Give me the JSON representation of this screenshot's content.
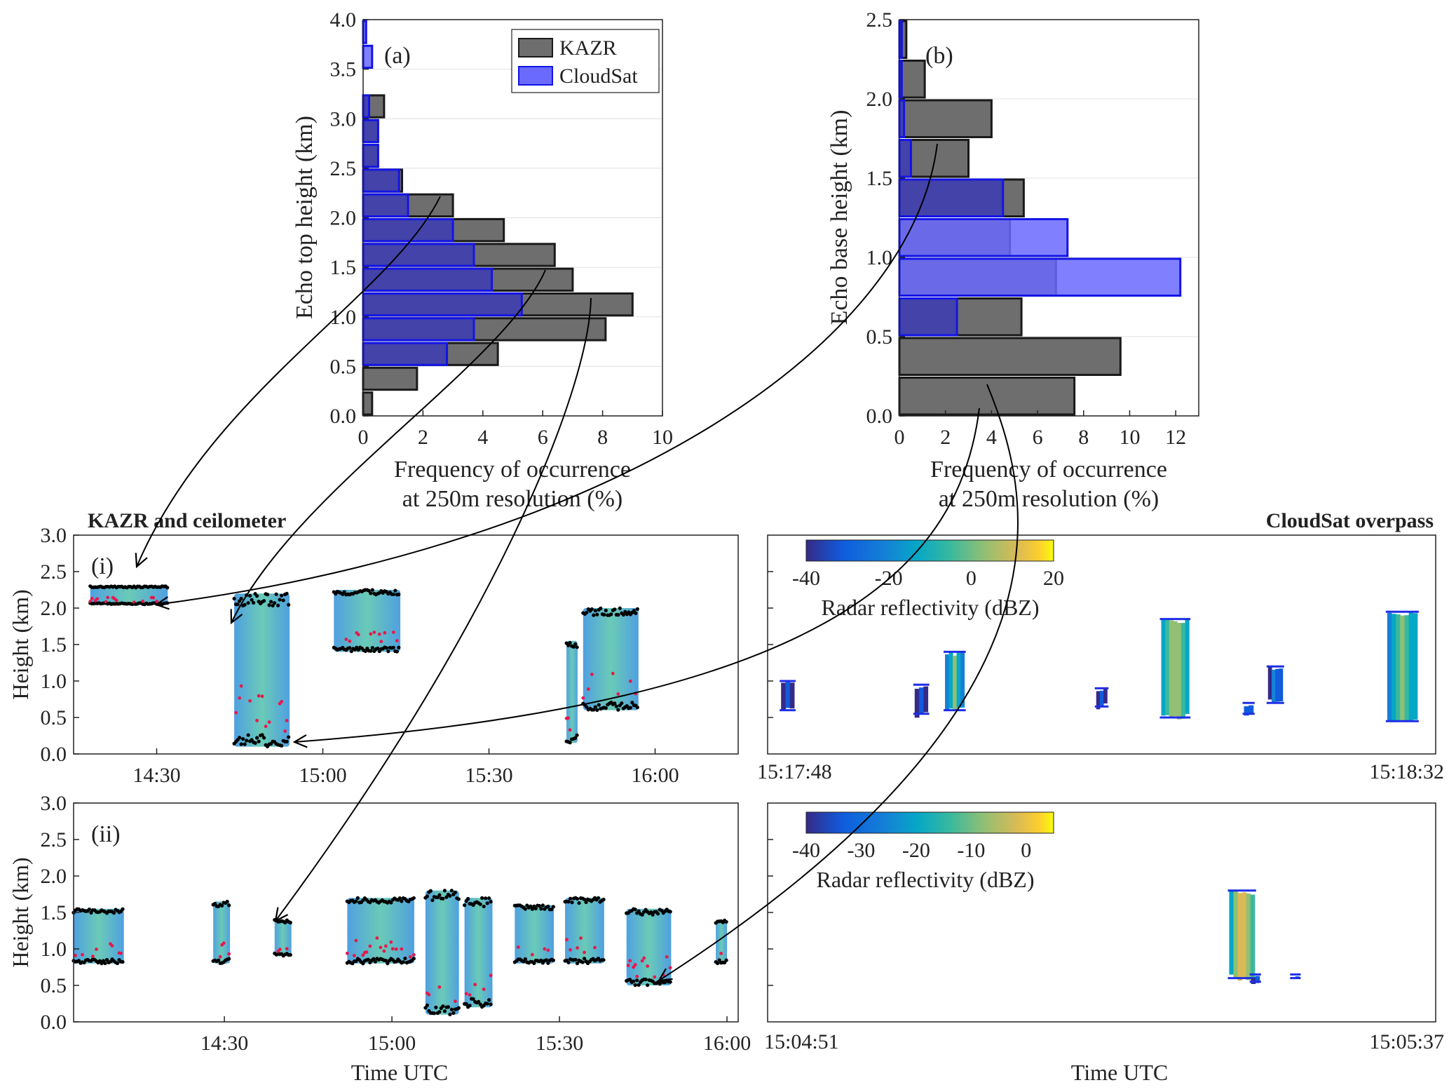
{
  "colors": {
    "kazr": "#6e6e6e",
    "cloudsat": "#6a6aff",
    "cloudsat_dark": "#3c3cb4",
    "edge_kazr": "#1a1a1a",
    "edge_cloudsat": "#1414e6",
    "ceilometer": "#e6194b",
    "echo_top": "#000000",
    "cloudsat_dot": "#1e2ee6"
  },
  "headings": {
    "kazr": "KAZR and ceilometer",
    "cloudsat": "CloudSat overpass"
  },
  "chart_data": [
    {
      "id": "a",
      "type": "bar",
      "orientation": "horizontal",
      "panel_label": "(a)",
      "ylabel": "Echo top height (km)",
      "xlabel_line1": "Frequency of occurrence",
      "xlabel_line2": "at 250m resolution (%)",
      "xlim": [
        0,
        10
      ],
      "ylim": [
        0,
        4
      ],
      "xticks": [
        "0",
        "2",
        "4",
        "6",
        "8",
        "10"
      ],
      "yticks": [
        "0.0",
        "0.5",
        "1.0",
        "1.5",
        "2.0",
        "2.5",
        "3.0",
        "3.5",
        "4.0"
      ],
      "bin_width_km": 0.25,
      "bin_bottoms_km": [
        0,
        0.25,
        0.5,
        0.75,
        1.0,
        1.25,
        1.5,
        1.75,
        2.0,
        2.25,
        2.5,
        2.75,
        3.0,
        3.25,
        3.5,
        3.75
      ],
      "legend_position": "top-right",
      "series": [
        {
          "name": "KAZR",
          "values": [
            0.3,
            1.8,
            4.5,
            8.1,
            9.0,
            7.0,
            6.4,
            4.7,
            3.0,
            1.3,
            0.5,
            0.5,
            0.7,
            0.0,
            0.0,
            0.0
          ]
        },
        {
          "name": "CloudSat",
          "values": [
            0.0,
            0.0,
            2.8,
            3.7,
            5.3,
            4.3,
            3.7,
            3.0,
            1.5,
            1.2,
            0.5,
            0.5,
            0.2,
            0.0,
            0.3,
            0.1
          ]
        }
      ]
    },
    {
      "id": "b",
      "type": "bar",
      "orientation": "horizontal",
      "panel_label": "(b)",
      "ylabel": "Echo base height (km)",
      "xlabel_line1": "Frequency of occurrence",
      "xlabel_line2": "at 250m resolution (%)",
      "xlim": [
        0,
        13
      ],
      "ylim": [
        0,
        2.5
      ],
      "xticks": [
        "0",
        "2",
        "4",
        "6",
        "8",
        "10",
        "12"
      ],
      "yticks": [
        "0.0",
        "0.5",
        "1.0",
        "1.5",
        "2.0",
        "2.5"
      ],
      "bin_width_km": 0.25,
      "bin_bottoms_km": [
        0,
        0.25,
        0.5,
        0.75,
        1.0,
        1.25,
        1.5,
        1.75,
        2.0,
        2.25
      ],
      "series": [
        {
          "name": "KAZR",
          "values": [
            7.6,
            9.6,
            5.3,
            6.8,
            4.8,
            5.4,
            3.0,
            4.0,
            1.1,
            0.3
          ]
        },
        {
          "name": "CloudSat",
          "values": [
            0.0,
            0.0,
            2.5,
            12.2,
            7.3,
            4.5,
            0.5,
            0.2,
            0.1,
            0.1
          ]
        }
      ]
    },
    {
      "id": "i-kazr",
      "type": "scatter",
      "panel_label": "(i)",
      "ylabel": "Height (km)",
      "xlabel": "",
      "ylim": [
        0,
        3
      ],
      "yticks": [
        "0.0",
        "0.5",
        "1.0",
        "1.5",
        "2.0",
        "2.5",
        "3.0"
      ],
      "xlim_min": [
        855,
        975
      ],
      "xticks": [
        {
          "label": "14:30",
          "min": 870
        },
        {
          "label": "15:00",
          "min": 900
        },
        {
          "label": "15:30",
          "min": 930
        },
        {
          "label": "16:00",
          "min": 960
        }
      ],
      "clouds": [
        {
          "start": 858,
          "end": 872,
          "base": 2.05,
          "top": 2.3
        },
        {
          "start": 884,
          "end": 894,
          "base": 0.1,
          "top": 2.2
        },
        {
          "start": 902,
          "end": 914,
          "base": 1.4,
          "top": 2.25
        },
        {
          "start": 944,
          "end": 946,
          "base": 0.15,
          "top": 1.55
        },
        {
          "start": 947,
          "end": 957,
          "base": 0.6,
          "top": 2.0
        }
      ]
    },
    {
      "id": "i-cloudsat",
      "type": "heatmap",
      "colorbar_label": "Radar reflectivity (dBZ)",
      "colorbar_ticks": [
        "-40",
        "-20",
        "0",
        "20"
      ],
      "colorbar_range": [
        -40,
        20
      ],
      "time_start": "15:17:48",
      "time_end": "15:18:32",
      "ylim": [
        0,
        3
      ],
      "cells": [
        {
          "t": 0.03,
          "base": 0.6,
          "top": 1.0,
          "dbz": -30
        },
        {
          "t": 0.23,
          "base": 0.55,
          "top": 0.95,
          "dbz": -25
        },
        {
          "t": 0.28,
          "base": 0.6,
          "top": 1.4,
          "dbz": 0
        },
        {
          "t": 0.5,
          "base": 0.65,
          "top": 0.9,
          "dbz": -35
        },
        {
          "t": 0.61,
          "base": 0.5,
          "top": 1.85,
          "dbz": 5
        },
        {
          "t": 0.72,
          "base": 0.55,
          "top": 0.7,
          "dbz": -20
        },
        {
          "t": 0.76,
          "base": 0.7,
          "top": 1.2,
          "dbz": -20
        },
        {
          "t": 0.95,
          "base": 0.45,
          "top": 1.95,
          "dbz": 0
        }
      ]
    },
    {
      "id": "ii-kazr",
      "type": "scatter",
      "panel_label": "(ii)",
      "ylabel": "Height (km)",
      "xlabel": "Time UTC",
      "ylim": [
        0,
        3
      ],
      "yticks": [
        "0.0",
        "0.5",
        "1.0",
        "1.5",
        "2.0",
        "2.5",
        "3.0"
      ],
      "xlim_min": [
        843,
        962
      ],
      "xticks": [
        {
          "label": "14:30",
          "min": 870
        },
        {
          "label": "15:00",
          "min": 900
        },
        {
          "label": "15:30",
          "min": 930
        },
        {
          "label": "16:00",
          "min": 960
        }
      ],
      "clouds": [
        {
          "start": 843,
          "end": 852,
          "base": 0.8,
          "top": 1.55
        },
        {
          "start": 868,
          "end": 871,
          "base": 0.8,
          "top": 1.65
        },
        {
          "start": 879,
          "end": 882,
          "base": 0.9,
          "top": 1.4
        },
        {
          "start": 892,
          "end": 904,
          "base": 0.8,
          "top": 1.7
        },
        {
          "start": 906,
          "end": 912,
          "base": 0.1,
          "top": 1.8
        },
        {
          "start": 913,
          "end": 918,
          "base": 0.2,
          "top": 1.7
        },
        {
          "start": 922,
          "end": 929,
          "base": 0.8,
          "top": 1.6
        },
        {
          "start": 931,
          "end": 938,
          "base": 0.8,
          "top": 1.7
        },
        {
          "start": 942,
          "end": 950,
          "base": 0.5,
          "top": 1.55
        },
        {
          "start": 958,
          "end": 960,
          "base": 0.8,
          "top": 1.4
        }
      ]
    },
    {
      "id": "ii-cloudsat",
      "type": "heatmap",
      "colorbar_label": "Radar reflectivity (dBZ)",
      "colorbar_ticks": [
        "-40",
        "-30",
        "-20",
        "-10",
        "0"
      ],
      "colorbar_range": [
        -40,
        5
      ],
      "time_start": "15:04:51",
      "time_end": "15:05:37",
      "xlabel": "Time UTC",
      "ylim": [
        0,
        3
      ],
      "cells": [
        {
          "t": 0.71,
          "base": 0.6,
          "top": 1.8,
          "dbz": 0
        },
        {
          "t": 0.73,
          "base": 0.55,
          "top": 0.65,
          "dbz": -25
        },
        {
          "t": 0.79,
          "base": 0.6,
          "top": 0.65,
          "dbz": -25
        }
      ]
    }
  ]
}
